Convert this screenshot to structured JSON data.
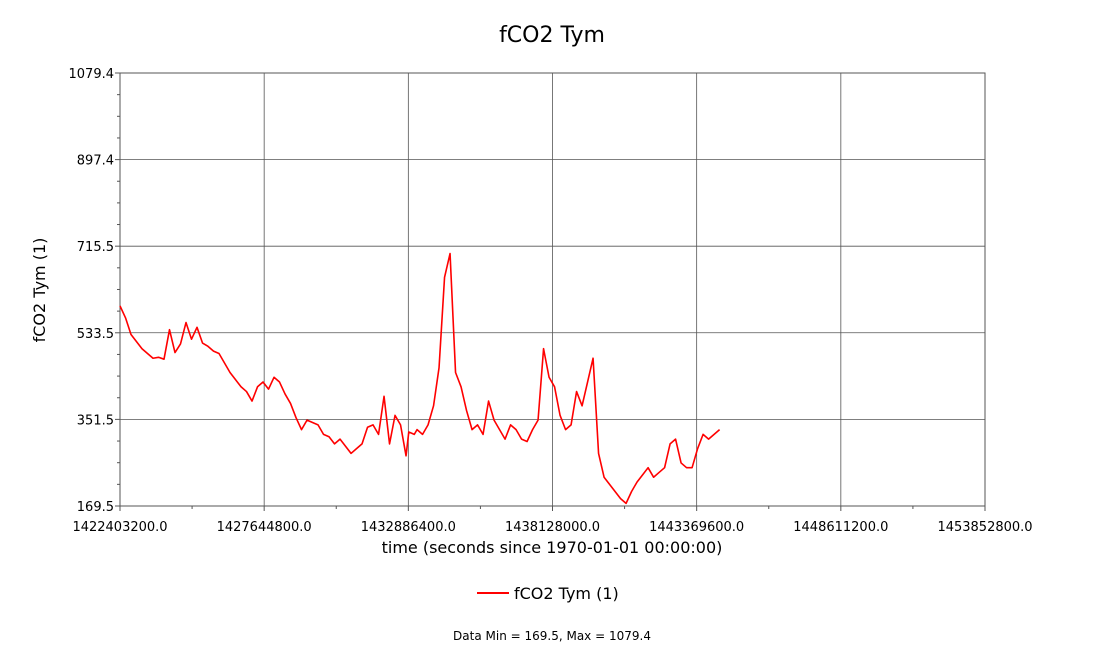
{
  "chart_data": {
    "type": "line",
    "title": "fCO2 Tym",
    "xlabel": "time (seconds since 1970-01-01 00:00:00)",
    "ylabel": "fCO2 Tym (1)",
    "xlim": [
      1422403200.0,
      1453852800.0
    ],
    "ylim": [
      169.5,
      1079.4
    ],
    "x_ticks": [
      "1422403200.0",
      "1427644800.0",
      "1432886400.0",
      "1438128000.0",
      "1443369600.0",
      "1448611200.0",
      "1453852800.0"
    ],
    "y_ticks": [
      "169.5",
      "351.5",
      "533.5",
      "715.5",
      "897.4",
      "1079.4"
    ],
    "grid": true,
    "legend_position": "bottom",
    "series": [
      {
        "name": "fCO2 Tym (1)",
        "color": "#ff0000",
        "x": [
          1422403200,
          1422603000,
          1422803000,
          1423003000,
          1423203000,
          1423403000,
          1423603000,
          1423803000,
          1424003000,
          1424203000,
          1424403000,
          1424603000,
          1424803000,
          1425003000,
          1425203000,
          1425403000,
          1425603000,
          1425803000,
          1426003000,
          1426203000,
          1426403000,
          1426603000,
          1426803000,
          1427003000,
          1427203000,
          1427403000,
          1427603000,
          1427803000,
          1428003000,
          1428203000,
          1428403000,
          1428603000,
          1428803000,
          1429003000,
          1429203000,
          1429403000,
          1429603000,
          1429803000,
          1430003000,
          1430203000,
          1430403000,
          1430603000,
          1430803000,
          1431003000,
          1431203000,
          1431403000,
          1431603000,
          1431803000,
          1432003000,
          1432203000,
          1432403000,
          1432603000,
          1432803000,
          1432903000,
          1433103000,
          1433203000,
          1433403000,
          1433603000,
          1433803000,
          1434003000,
          1434203000,
          1434403000,
          1434603000,
          1434803000,
          1435003000,
          1435203000,
          1435403000,
          1435603000,
          1435803000,
          1436003000,
          1436203000,
          1436403000,
          1436603000,
          1436803000,
          1437003000,
          1437203000,
          1437403000,
          1437603000,
          1437803000,
          1438003000,
          1438203000,
          1438403000,
          1438603000,
          1438803000,
          1439003000,
          1439203000,
          1439403000,
          1439603000,
          1439803000,
          1440003000,
          1440203000,
          1440403000,
          1440603000,
          1440803000,
          1441003000,
          1441203000,
          1441403000,
          1441603000,
          1441803000,
          1442003000,
          1442203000,
          1442403000,
          1442603000,
          1442803000,
          1443003000,
          1443203000,
          1443403000,
          1443603000,
          1443803000,
          1444003000,
          1444203000
        ],
        "y": [
          590,
          565,
          530,
          515,
          500,
          490,
          480,
          482,
          478,
          540,
          492,
          510,
          555,
          520,
          545,
          512,
          505,
          495,
          490,
          470,
          450,
          435,
          420,
          410,
          390,
          420,
          430,
          415,
          440,
          430,
          405,
          385,
          355,
          330,
          350,
          345,
          340,
          320,
          315,
          300,
          310,
          295,
          280,
          290,
          300,
          335,
          340,
          320,
          400,
          300,
          360,
          340,
          275,
          325,
          320,
          330,
          320,
          340,
          380,
          460,
          650,
          700,
          450,
          420,
          370,
          330,
          340,
          320,
          390,
          350,
          330,
          310,
          340,
          330,
          310,
          305,
          330,
          350,
          500,
          440,
          420,
          360,
          330,
          340,
          410,
          380,
          430,
          480,
          280,
          230,
          215,
          200,
          185,
          175,
          200,
          220,
          235,
          250,
          230,
          240,
          250,
          300,
          310,
          260,
          250,
          250,
          290,
          320,
          310,
          320,
          330
        ]
      }
    ],
    "data_min": 169.5,
    "data_max": 1079.4
  },
  "legend": {
    "label": "fCO2 Tym (1)"
  },
  "footer": {
    "text": "Data Min = 169.5, Max = 1079.4"
  }
}
